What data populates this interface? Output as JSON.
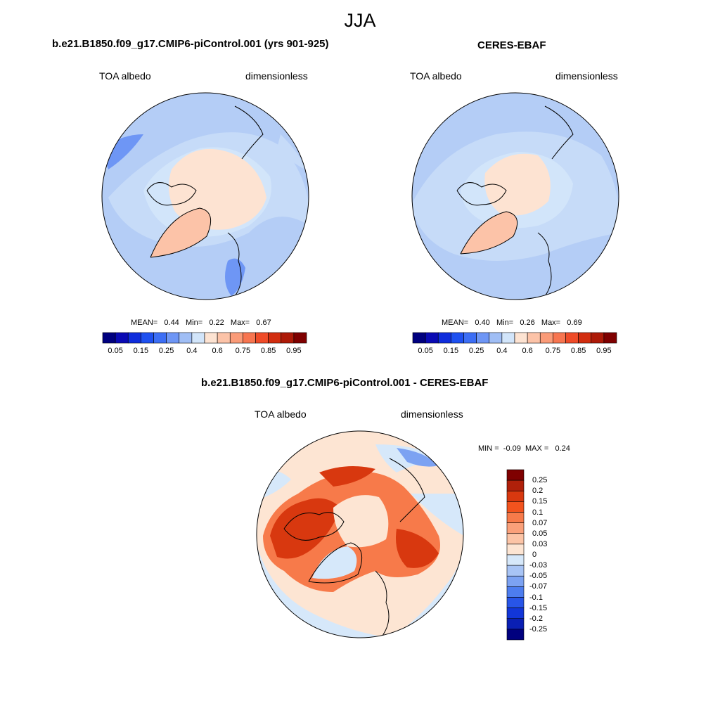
{
  "season": "JJA",
  "variable": "TOA albedo",
  "units": "dimensionless",
  "panels": [
    {
      "title": "b.e21.B1850.f09_g17.CMIP6-piControl.001 (yrs 901-925)",
      "stats": {
        "mean_label": "MEAN=",
        "mean": "0.44",
        "min_label": "Min=",
        "min": "0.22",
        "max_label": "Max=",
        "max": "0.67"
      }
    },
    {
      "title": "CERES-EBAF",
      "stats": {
        "mean_label": "MEAN=",
        "mean": "0.40",
        "min_label": "Min=",
        "min": "0.26",
        "max_label": "Max=",
        "max": "0.69"
      }
    },
    {
      "title": "b.e21.B1850.f09_g17.CMIP6-piControl.001 - CERES-EBAF",
      "stats": {
        "min_label": "MIN =",
        "min": "-0.09",
        "max_label": "MAX =",
        "max": "0.24"
      }
    }
  ],
  "colorbar_abs": {
    "colors": [
      "#00007f",
      "#0a0ab4",
      "#0f2ddc",
      "#1e50f0",
      "#3c6ef5",
      "#6e96f5",
      "#a0bef5",
      "#d2e5fa",
      "#fde3d2",
      "#fcc3a8",
      "#fa9b78",
      "#f77550",
      "#ef4b28",
      "#d22d0f",
      "#ad1a08",
      "#7f0000"
    ],
    "tick_labels": [
      "0.05",
      "0.15",
      "0.25",
      "0.4",
      "0.6",
      "0.75",
      "0.85",
      "0.95"
    ]
  },
  "colorbar_diff": {
    "colors": [
      "#7f0000",
      "#b0200a",
      "#d8380f",
      "#f2531e",
      "#f77a4a",
      "#faa07a",
      "#fcc4a6",
      "#fde5d3",
      "#d6e8fa",
      "#a8c4f5",
      "#7ca2f2",
      "#4d7def",
      "#2855e8",
      "#1236d8",
      "#0a1fb4",
      "#00007f"
    ],
    "tick_labels": [
      "0.25",
      "0.2",
      "0.15",
      "0.1",
      "0.07",
      "0.05",
      "0.03",
      "0",
      "-0.03",
      "-0.05",
      "-0.07",
      "-0.1",
      "-0.15",
      "-0.2",
      "-0.25"
    ]
  }
}
